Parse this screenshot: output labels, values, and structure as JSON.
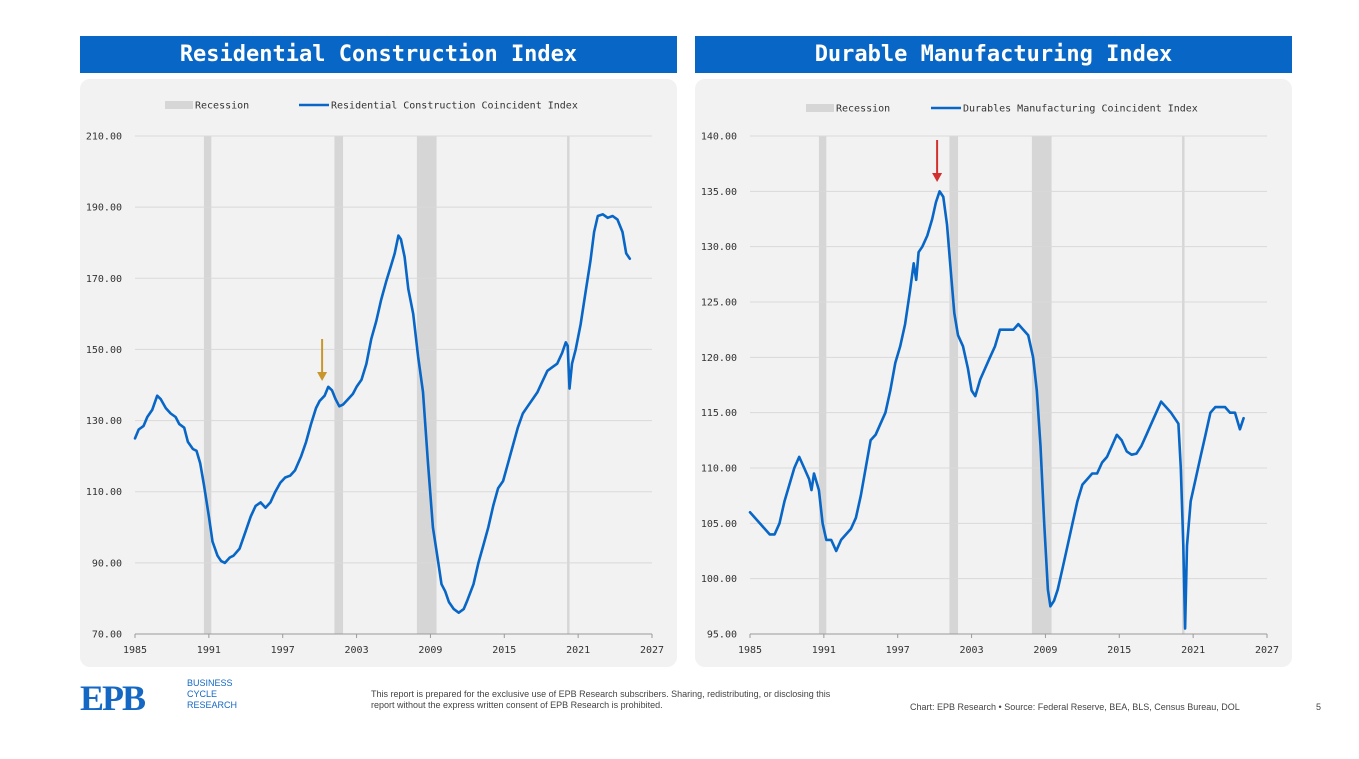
{
  "footer": {
    "logo_mark": "EPB",
    "logo_lines": [
      "BUSINESS",
      "CYCLE",
      "RESEARCH"
    ],
    "disclaimer": "This report is prepared for the exclusive use of EPB Research subscribers. Sharing, redistributing, or disclosing this report without the express written consent of EPB Research is prohibited.",
    "source": "Chart: EPB Research  •  Source: Federal Reserve, BEA, BLS, Census Bureau, DOL",
    "page_number": "5"
  },
  "colors": {
    "title_bg": "#0866C6",
    "line": "#0866C6",
    "recession": "#d6d6d6",
    "panel_bg": "#f2f2f2"
  },
  "chart_data": [
    {
      "type": "line",
      "title": "Residential Construction Index",
      "legend": [
        "Recession",
        "Residential Construction Coincident Index"
      ],
      "legend_position": "top",
      "grid": true,
      "xlim": [
        1985,
        2027
      ],
      "ylim": [
        70,
        210
      ],
      "yticks": [
        "70.00",
        "90.00",
        "110.00",
        "130.00",
        "150.00",
        "170.00",
        "190.00",
        "210.00"
      ],
      "xticks": [
        "1985",
        "1991",
        "1997",
        "2003",
        "2009",
        "2015",
        "2021",
        "2027"
      ],
      "recessions": [
        [
          1990.6,
          1991.2
        ],
        [
          2001.2,
          2001.9
        ],
        [
          2007.9,
          2009.5
        ],
        [
          2020.1,
          2020.3
        ]
      ],
      "arrow": {
        "x": 2000.2,
        "color": "#C9962E"
      },
      "series": [
        {
          "name": "Residential Construction Coincident Index",
          "points": [
            [
              1985.0,
              125
            ],
            [
              1985.3,
              127.5
            ],
            [
              1985.7,
              128.5
            ],
            [
              1986.0,
              131
            ],
            [
              1986.4,
              133
            ],
            [
              1986.8,
              137
            ],
            [
              1987.1,
              136
            ],
            [
              1987.5,
              133.5
            ],
            [
              1987.9,
              132
            ],
            [
              1988.3,
              131
            ],
            [
              1988.6,
              129
            ],
            [
              1989.0,
              128
            ],
            [
              1989.3,
              124
            ],
            [
              1989.7,
              122
            ],
            [
              1990.0,
              121.5
            ],
            [
              1990.3,
              118
            ],
            [
              1990.6,
              112
            ],
            [
              1991.0,
              103
            ],
            [
              1991.3,
              96
            ],
            [
              1991.7,
              92
            ],
            [
              1992.0,
              90.5
            ],
            [
              1992.3,
              90
            ],
            [
              1992.7,
              91.5
            ],
            [
              1993.0,
              92
            ],
            [
              1993.5,
              94
            ],
            [
              1994.0,
              99
            ],
            [
              1994.4,
              103
            ],
            [
              1994.8,
              106
            ],
            [
              1995.2,
              107
            ],
            [
              1995.6,
              105.5
            ],
            [
              1996.0,
              107
            ],
            [
              1996.4,
              110
            ],
            [
              1996.8,
              112.5
            ],
            [
              1997.2,
              114
            ],
            [
              1997.6,
              114.5
            ],
            [
              1998.0,
              116
            ],
            [
              1998.5,
              120
            ],
            [
              1998.9,
              124
            ],
            [
              1999.3,
              129
            ],
            [
              1999.7,
              133.5
            ],
            [
              2000.0,
              135.5
            ],
            [
              2000.4,
              137
            ],
            [
              2000.7,
              139.5
            ],
            [
              2001.0,
              138.5
            ],
            [
              2001.3,
              136
            ],
            [
              2001.6,
              134
            ],
            [
              2001.9,
              134.5
            ],
            [
              2002.3,
              136
            ],
            [
              2002.7,
              137.5
            ],
            [
              2003.0,
              139.5
            ],
            [
              2003.4,
              141.5
            ],
            [
              2003.8,
              146
            ],
            [
              2004.2,
              153
            ],
            [
              2004.6,
              158
            ],
            [
              2005.0,
              164
            ],
            [
              2005.4,
              169
            ],
            [
              2005.8,
              173.5
            ],
            [
              2006.1,
              177
            ],
            [
              2006.4,
              182
            ],
            [
              2006.6,
              181
            ],
            [
              2006.9,
              176
            ],
            [
              2007.2,
              167
            ],
            [
              2007.6,
              160
            ],
            [
              2008.0,
              148
            ],
            [
              2008.4,
              138
            ],
            [
              2008.8,
              118
            ],
            [
              2009.2,
              100
            ],
            [
              2009.6,
              91
            ],
            [
              2009.9,
              84
            ],
            [
              2010.2,
              82
            ],
            [
              2010.5,
              79
            ],
            [
              2010.9,
              77
            ],
            [
              2011.3,
              76
            ],
            [
              2011.7,
              77
            ],
            [
              2012.0,
              79.5
            ],
            [
              2012.5,
              84
            ],
            [
              2012.9,
              90
            ],
            [
              2013.3,
              95
            ],
            [
              2013.7,
              100
            ],
            [
              2014.1,
              106
            ],
            [
              2014.5,
              111
            ],
            [
              2014.9,
              113
            ],
            [
              2015.3,
              118
            ],
            [
              2015.7,
              123
            ],
            [
              2016.1,
              128
            ],
            [
              2016.5,
              132
            ],
            [
              2016.9,
              134
            ],
            [
              2017.3,
              136
            ],
            [
              2017.7,
              138
            ],
            [
              2018.1,
              141
            ],
            [
              2018.5,
              144
            ],
            [
              2018.9,
              145
            ],
            [
              2019.3,
              146
            ],
            [
              2019.7,
              149
            ],
            [
              2020.0,
              152
            ],
            [
              2020.15,
              151
            ],
            [
              2020.3,
              139
            ],
            [
              2020.5,
              146
            ],
            [
              2020.8,
              150
            ],
            [
              2021.2,
              157
            ],
            [
              2021.6,
              166
            ],
            [
              2022.0,
              175
            ],
            [
              2022.3,
              183
            ],
            [
              2022.6,
              187.5
            ],
            [
              2023.0,
              188
            ],
            [
              2023.4,
              187
            ],
            [
              2023.8,
              187.5
            ],
            [
              2024.2,
              186.5
            ],
            [
              2024.6,
              183
            ],
            [
              2024.9,
              177
            ],
            [
              2025.2,
              175.5
            ]
          ]
        }
      ]
    },
    {
      "type": "line",
      "title": "Durable Manufacturing Index",
      "legend": [
        "Recession",
        "Durables Manufacturing Coincident Index"
      ],
      "legend_position": "top",
      "grid": true,
      "xlim": [
        1985,
        2027
      ],
      "ylim": [
        95,
        140
      ],
      "yticks": [
        "95.00",
        "100.00",
        "105.00",
        "110.00",
        "115.00",
        "120.00",
        "125.00",
        "130.00",
        "135.00",
        "140.00"
      ],
      "xticks": [
        "1985",
        "1991",
        "1997",
        "2003",
        "2009",
        "2015",
        "2021",
        "2027"
      ],
      "recessions": [
        [
          1990.6,
          1991.2
        ],
        [
          2001.2,
          2001.9
        ],
        [
          2007.9,
          2009.5
        ],
        [
          2020.1,
          2020.3
        ]
      ],
      "arrow": {
        "x": 2000.2,
        "color": "#D32F2F"
      },
      "series": [
        {
          "name": "Durables Manufacturing Coincident Index",
          "points": [
            [
              1985.0,
              106
            ],
            [
              1985.4,
              105.5
            ],
            [
              1985.8,
              105
            ],
            [
              1986.2,
              104.5
            ],
            [
              1986.6,
              104
            ],
            [
              1987.0,
              104
            ],
            [
              1987.4,
              105
            ],
            [
              1987.8,
              107
            ],
            [
              1988.2,
              108.5
            ],
            [
              1988.6,
              110
            ],
            [
              1989.0,
              111
            ],
            [
              1989.4,
              110
            ],
            [
              1989.8,
              109
            ],
            [
              1990.0,
              108
            ],
            [
              1990.2,
              109.5
            ],
            [
              1990.6,
              108
            ],
            [
              1990.9,
              105
            ],
            [
              1991.2,
              103.5
            ],
            [
              1991.6,
              103.5
            ],
            [
              1992.0,
              102.5
            ],
            [
              1992.4,
              103.5
            ],
            [
              1992.8,
              104
            ],
            [
              1993.2,
              104.5
            ],
            [
              1993.6,
              105.5
            ],
            [
              1994.0,
              107.5
            ],
            [
              1994.4,
              110
            ],
            [
              1994.8,
              112.5
            ],
            [
              1995.2,
              113
            ],
            [
              1995.6,
              114
            ],
            [
              1996.0,
              115
            ],
            [
              1996.4,
              117
            ],
            [
              1996.8,
              119.5
            ],
            [
              1997.2,
              121
            ],
            [
              1997.6,
              123
            ],
            [
              1998.0,
              126
            ],
            [
              1998.3,
              128.5
            ],
            [
              1998.5,
              127
            ],
            [
              1998.7,
              129.5
            ],
            [
              1999.0,
              130
            ],
            [
              1999.4,
              131
            ],
            [
              1999.8,
              132.5
            ],
            [
              2000.1,
              134
            ],
            [
              2000.4,
              135
            ],
            [
              2000.7,
              134.5
            ],
            [
              2001.0,
              132
            ],
            [
              2001.3,
              128
            ],
            [
              2001.6,
              124
            ],
            [
              2001.9,
              122
            ],
            [
              2002.3,
              121
            ],
            [
              2002.7,
              119
            ],
            [
              2003.0,
              117
            ],
            [
              2003.3,
              116.5
            ],
            [
              2003.7,
              118
            ],
            [
              2004.1,
              119
            ],
            [
              2004.5,
              120
            ],
            [
              2004.9,
              121
            ],
            [
              2005.3,
              122.5
            ],
            [
              2005.7,
              122.5
            ],
            [
              2006.0,
              122.5
            ],
            [
              2006.4,
              122.5
            ],
            [
              2006.8,
              123
            ],
            [
              2007.2,
              122.5
            ],
            [
              2007.6,
              122
            ],
            [
              2008.0,
              120
            ],
            [
              2008.3,
              117
            ],
            [
              2008.6,
              112
            ],
            [
              2008.9,
              105
            ],
            [
              2009.2,
              99
            ],
            [
              2009.4,
              97.5
            ],
            [
              2009.7,
              98
            ],
            [
              2010.0,
              99
            ],
            [
              2010.4,
              101
            ],
            [
              2010.8,
              103
            ],
            [
              2011.2,
              105
            ],
            [
              2011.6,
              107
            ],
            [
              2012.0,
              108.5
            ],
            [
              2012.4,
              109
            ],
            [
              2012.8,
              109.5
            ],
            [
              2013.2,
              109.5
            ],
            [
              2013.6,
              110.5
            ],
            [
              2014.0,
              111
            ],
            [
              2014.4,
              112
            ],
            [
              2014.8,
              113
            ],
            [
              2015.2,
              112.5
            ],
            [
              2015.6,
              111.5
            ],
            [
              2016.0,
              111.2
            ],
            [
              2016.4,
              111.3
            ],
            [
              2016.8,
              112
            ],
            [
              2017.2,
              113
            ],
            [
              2017.6,
              114
            ],
            [
              2018.0,
              115
            ],
            [
              2018.4,
              116
            ],
            [
              2018.8,
              115.5
            ],
            [
              2019.2,
              115
            ],
            [
              2019.5,
              114.5
            ],
            [
              2019.8,
              114
            ],
            [
              2020.0,
              110
            ],
            [
              2020.2,
              103
            ],
            [
              2020.35,
              95.5
            ],
            [
              2020.5,
              103
            ],
            [
              2020.8,
              107
            ],
            [
              2021.2,
              109
            ],
            [
              2021.6,
              111
            ],
            [
              2022.0,
              113
            ],
            [
              2022.4,
              115
            ],
            [
              2022.8,
              115.5
            ],
            [
              2023.2,
              115.5
            ],
            [
              2023.6,
              115.5
            ],
            [
              2024.0,
              115
            ],
            [
              2024.4,
              115
            ],
            [
              2024.8,
              113.5
            ],
            [
              2025.1,
              114.5
            ]
          ]
        }
      ]
    }
  ]
}
